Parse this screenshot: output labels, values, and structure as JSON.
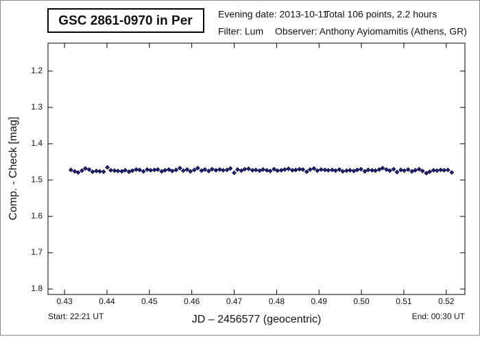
{
  "chart_data": {
    "type": "scatter",
    "title": "GSC 2861-0970 in Per",
    "header": [
      "Evening date: 2013-10-11",
      "Total 106 points, 2.2 hours",
      "Filter: Lum",
      "Observer: Anthony Ayiomamitis (Athens, GR)"
    ],
    "start_label": "Start: 22:21 UT",
    "end_label": "End: 00:30 UT",
    "x_label": "JD – 2456577  (geocentric)",
    "y_label": "Comp. - Check [mag]",
    "xlim": [
      0.4261,
      0.5244
    ],
    "ylim": [
      1.123,
      1.815
    ],
    "y_inverted": true,
    "grid": false,
    "color": "#1c1c8a",
    "xticks": [
      0.43,
      0.44,
      0.45,
      0.46,
      0.47,
      0.48,
      0.49,
      {
        "value": 0.5,
        "label": "0.50"
      },
      0.51,
      0.52
    ],
    "yticks": [
      1.2,
      1.3,
      1.4,
      1.5,
      1.6,
      1.7,
      1.8
    ],
    "x": [
      0.4315,
      0.4324,
      0.4332,
      0.4341,
      0.4349,
      0.4358,
      0.4366,
      0.4375,
      0.4383,
      0.4392,
      0.4401,
      0.4409,
      0.4418,
      0.4426,
      0.4435,
      0.4443,
      0.4452,
      0.446,
      0.4469,
      0.4477,
      0.4486,
      0.4495,
      0.4503,
      0.4512,
      0.452,
      0.4529,
      0.4537,
      0.4546,
      0.4554,
      0.4563,
      0.4572,
      0.458,
      0.4589,
      0.4597,
      0.4606,
      0.4614,
      0.4623,
      0.4631,
      0.464,
      0.4648,
      0.4657,
      0.4666,
      0.4674,
      0.4683,
      0.4691,
      0.47,
      0.4708,
      0.4717,
      0.4725,
      0.4734,
      0.4743,
      0.4751,
      0.476,
      0.4768,
      0.4777,
      0.4785,
      0.4794,
      0.4802,
      0.4811,
      0.4819,
      0.4828,
      0.4837,
      0.4845,
      0.4854,
      0.4862,
      0.4871,
      0.4879,
      0.4888,
      0.4896,
      0.4905,
      0.4914,
      0.4922,
      0.4931,
      0.4939,
      0.4948,
      0.4956,
      0.4965,
      0.4973,
      0.4982,
      0.499,
      0.4999,
      0.5008,
      0.5016,
      0.5025,
      0.5033,
      0.5042,
      0.505,
      0.5059,
      0.5067,
      0.5076,
      0.5084,
      0.5093,
      0.5101,
      0.511,
      0.5119,
      0.5127,
      0.5136,
      0.5144,
      0.5153,
      0.5161,
      0.517,
      0.5178,
      0.5187,
      0.5195,
      0.5204,
      0.5213
    ],
    "values": [
      1.472,
      1.476,
      1.479,
      1.474,
      1.468,
      1.471,
      1.477,
      1.475,
      1.476,
      1.477,
      1.465,
      1.473,
      1.474,
      1.475,
      1.476,
      1.473,
      1.477,
      1.474,
      1.471,
      1.472,
      1.476,
      1.471,
      1.473,
      1.472,
      1.471,
      1.476,
      1.473,
      1.471,
      1.475,
      1.472,
      1.467,
      1.474,
      1.471,
      1.476,
      1.472,
      1.467,
      1.474,
      1.471,
      1.475,
      1.47,
      1.473,
      1.471,
      1.473,
      1.472,
      1.468,
      1.48,
      1.471,
      1.474,
      1.47,
      1.469,
      1.473,
      1.472,
      1.474,
      1.471,
      1.473,
      1.475,
      1.47,
      1.474,
      1.473,
      1.471,
      1.469,
      1.473,
      1.472,
      1.47,
      1.471,
      1.477,
      1.471,
      1.468,
      1.474,
      1.471,
      1.472,
      1.473,
      1.472,
      1.474,
      1.471,
      1.476,
      1.474,
      1.473,
      1.475,
      1.472,
      1.47,
      1.476,
      1.472,
      1.473,
      1.474,
      1.471,
      1.467,
      1.471,
      1.474,
      1.47,
      1.478,
      1.472,
      1.474,
      1.471,
      1.476,
      1.473,
      1.47,
      1.475,
      1.481,
      1.477,
      1.473,
      1.474,
      1.472,
      1.473,
      1.472,
      1.479
    ]
  }
}
